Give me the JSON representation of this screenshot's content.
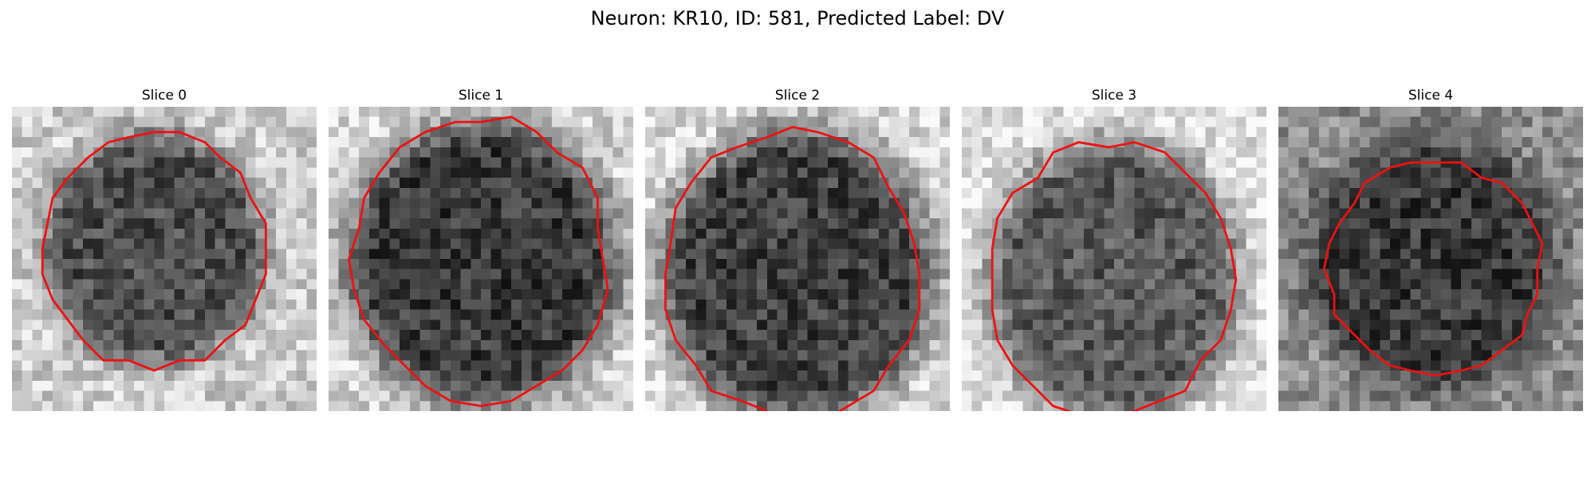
{
  "figure": {
    "title": "Neuron: KR10, ID: 581, Predicted Label: DV"
  },
  "slices": [
    {
      "label": "Slice 0"
    },
    {
      "label": "Slice 1"
    },
    {
      "label": "Slice 2"
    },
    {
      "label": "Slice 3"
    },
    {
      "label": "Slice 4"
    }
  ],
  "colors": {
    "contour": "#ee1111",
    "background": "#ffffff"
  },
  "image": {
    "colormap": "grayscale",
    "grid_cells": 30
  }
}
